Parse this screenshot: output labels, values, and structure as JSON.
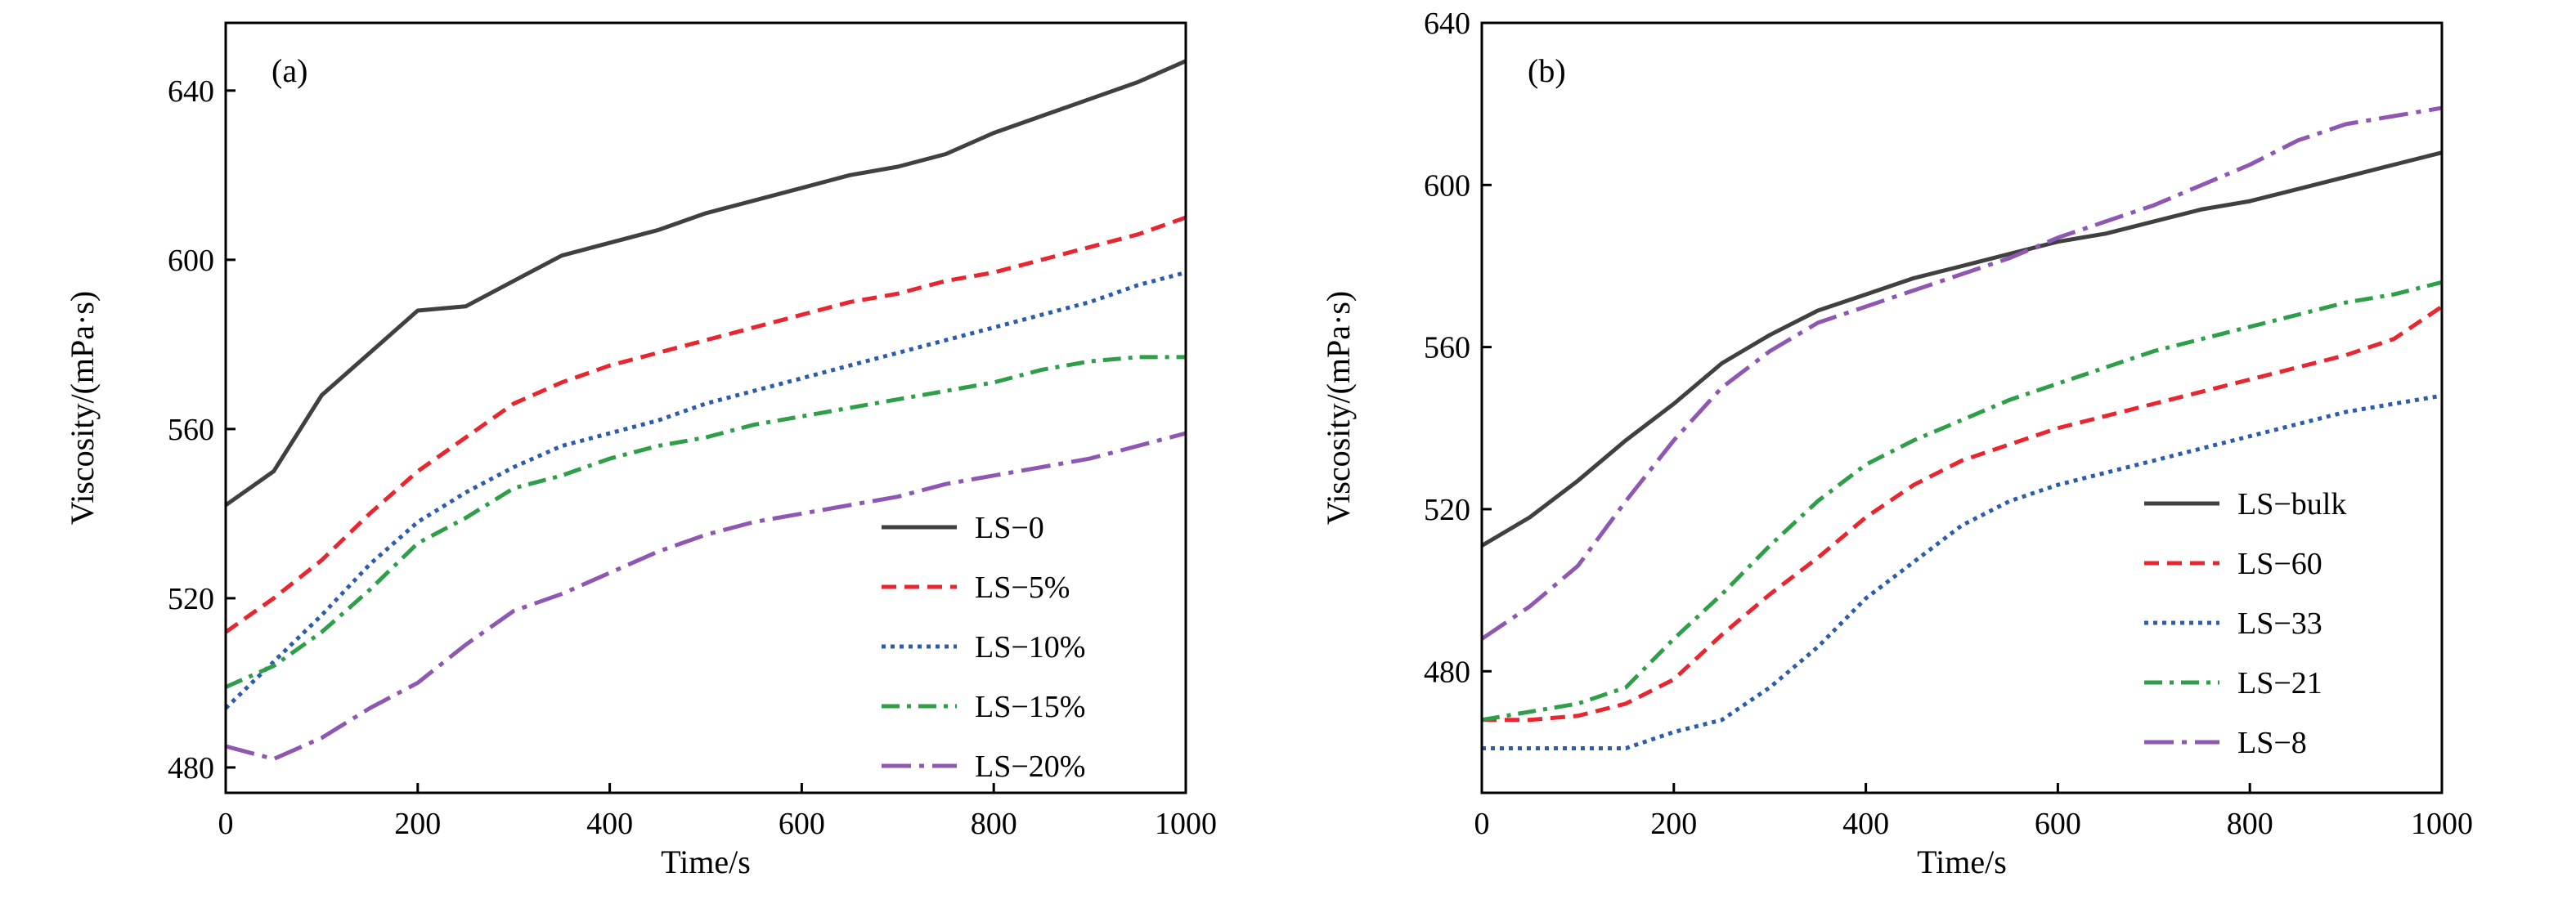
{
  "chart_data": [
    {
      "type": "line",
      "panel_label": "(a)",
      "xlabel": "Time/s",
      "ylabel": "Viscosity/(mPa·s)",
      "xlim": [
        0,
        1000
      ],
      "ylim": [
        474,
        656
      ],
      "xticks": [
        0,
        200,
        400,
        600,
        800,
        1000
      ],
      "yticks": [
        480,
        520,
        560,
        600,
        640
      ],
      "grid": false,
      "legend_position": "bottom-right",
      "series": [
        {
          "name": "LS−0",
          "color": "#404040",
          "style": "solid",
          "x": [
            0,
            50,
            100,
            150,
            200,
            250,
            300,
            350,
            400,
            450,
            500,
            550,
            600,
            650,
            700,
            750,
            800,
            850,
            900,
            950,
            1000
          ],
          "y": [
            542,
            550,
            568,
            578,
            588,
            589,
            595,
            601,
            604,
            607,
            611,
            614,
            617,
            620,
            622,
            625,
            630,
            634,
            638,
            642,
            647
          ]
        },
        {
          "name": "LS−5%",
          "color": "#e8262f",
          "style": "dash",
          "x": [
            0,
            50,
            100,
            150,
            200,
            250,
            300,
            350,
            400,
            450,
            500,
            550,
            600,
            650,
            700,
            750,
            800,
            850,
            900,
            950,
            1000
          ],
          "y": [
            512,
            520,
            529,
            540,
            550,
            558,
            566,
            571,
            575,
            578,
            581,
            584,
            587,
            590,
            592,
            595,
            597,
            600,
            603,
            606,
            610
          ]
        },
        {
          "name": "LS−10%",
          "color": "#2c5caa",
          "style": "dot",
          "x": [
            0,
            50,
            100,
            150,
            200,
            250,
            300,
            350,
            400,
            450,
            500,
            550,
            600,
            650,
            700,
            750,
            800,
            850,
            900,
            950,
            1000
          ],
          "y": [
            494,
            505,
            516,
            528,
            538,
            545,
            551,
            556,
            559,
            562,
            566,
            569,
            572,
            575,
            578,
            581,
            584,
            587,
            590,
            594,
            597
          ]
        },
        {
          "name": "LS−15%",
          "color": "#2f9e49",
          "style": "dashdot",
          "x": [
            0,
            50,
            100,
            150,
            200,
            250,
            300,
            350,
            400,
            450,
            500,
            550,
            600,
            650,
            700,
            750,
            800,
            850,
            900,
            950,
            1000
          ],
          "y": [
            499,
            504,
            512,
            522,
            533,
            539,
            546,
            549,
            553,
            556,
            558,
            561,
            563,
            565,
            567,
            569,
            571,
            574,
            576,
            577,
            577
          ]
        },
        {
          "name": "LS−20%",
          "color": "#8e58b2",
          "style": "longdashdot",
          "x": [
            0,
            50,
            100,
            150,
            200,
            250,
            300,
            350,
            400,
            450,
            500,
            550,
            600,
            650,
            700,
            750,
            800,
            850,
            900,
            950,
            1000
          ],
          "y": [
            485,
            482,
            487,
            494,
            500,
            509,
            517,
            521,
            526,
            531,
            535,
            538,
            540,
            542,
            544,
            547,
            549,
            551,
            553,
            556,
            559
          ]
        }
      ]
    },
    {
      "type": "line",
      "panel_label": "(b)",
      "xlabel": "Time/s",
      "ylabel": "Viscosity/(mPa·s)",
      "xlim": [
        0,
        1000
      ],
      "ylim": [
        450,
        640
      ],
      "xticks": [
        0,
        200,
        400,
        600,
        800,
        1000
      ],
      "yticks": [
        480,
        520,
        560,
        600,
        640
      ],
      "grid": false,
      "legend_position": "bottom-right",
      "series": [
        {
          "name": "LS−bulk",
          "color": "#404040",
          "style": "solid",
          "x": [
            0,
            50,
            100,
            150,
            200,
            250,
            300,
            350,
            400,
            450,
            500,
            550,
            600,
            650,
            700,
            750,
            800,
            850,
            900,
            950,
            1000
          ],
          "y": [
            511,
            518,
            527,
            537,
            546,
            556,
            563,
            569,
            573,
            577,
            580,
            583,
            586,
            588,
            591,
            594,
            596,
            599,
            602,
            605,
            608
          ]
        },
        {
          "name": "LS−60",
          "color": "#e8262f",
          "style": "dash",
          "x": [
            0,
            50,
            100,
            150,
            200,
            250,
            300,
            350,
            400,
            450,
            500,
            550,
            600,
            650,
            700,
            750,
            800,
            850,
            900,
            950,
            1000
          ],
          "y": [
            468,
            468,
            469,
            472,
            478,
            489,
            499,
            508,
            518,
            526,
            532,
            536,
            540,
            543,
            546,
            549,
            552,
            555,
            558,
            562,
            570
          ]
        },
        {
          "name": "LS−33",
          "color": "#2c5caa",
          "style": "dot",
          "x": [
            0,
            50,
            100,
            150,
            200,
            250,
            300,
            350,
            400,
            450,
            500,
            550,
            600,
            650,
            700,
            750,
            800,
            850,
            900,
            950,
            1000
          ],
          "y": [
            461,
            461,
            461,
            461,
            465,
            468,
            476,
            486,
            498,
            507,
            516,
            522,
            526,
            529,
            532,
            535,
            538,
            541,
            544,
            546,
            548
          ]
        },
        {
          "name": "LS−21",
          "color": "#2f9e49",
          "style": "dashdot",
          "x": [
            0,
            50,
            100,
            150,
            200,
            250,
            300,
            350,
            400,
            450,
            500,
            550,
            600,
            650,
            700,
            750,
            800,
            850,
            900,
            950,
            1000
          ],
          "y": [
            468,
            470,
            472,
            476,
            488,
            499,
            511,
            522,
            531,
            537,
            542,
            547,
            551,
            555,
            559,
            562,
            565,
            568,
            571,
            573,
            576
          ]
        },
        {
          "name": "LS−8",
          "color": "#8e58b2",
          "style": "longdashdot",
          "x": [
            0,
            50,
            100,
            150,
            200,
            250,
            300,
            350,
            400,
            450,
            500,
            550,
            600,
            650,
            700,
            750,
            800,
            850,
            900,
            950,
            1000
          ],
          "y": [
            488,
            496,
            506,
            522,
            537,
            550,
            559,
            566,
            570,
            574,
            578,
            582,
            587,
            591,
            595,
            600,
            605,
            611,
            615,
            617,
            619
          ]
        }
      ]
    }
  ]
}
